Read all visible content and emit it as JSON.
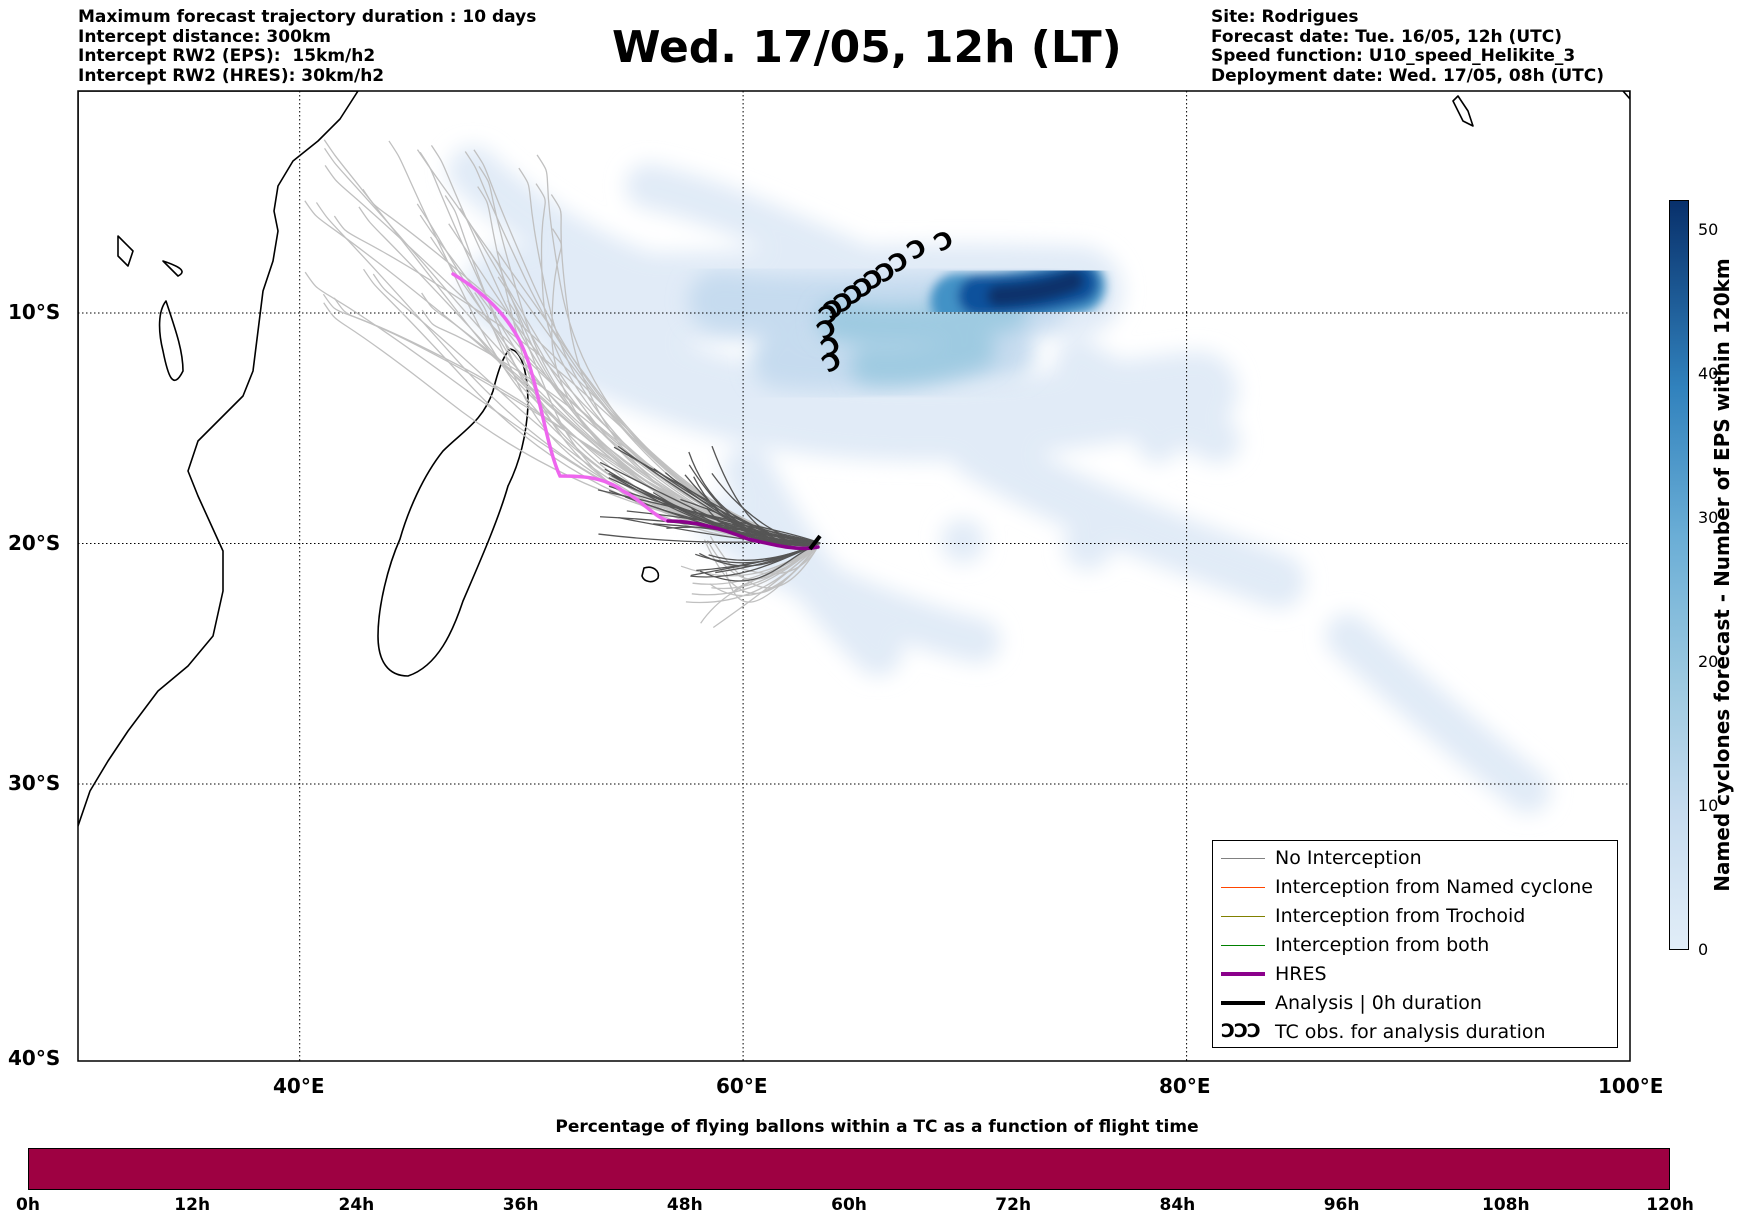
{
  "header": {
    "left": [
      "Maximum forecast trajectory duration : 10 days",
      "Intercept distance: 300km",
      "Intercept RW2 (EPS):  15km/h2",
      "Intercept RW2 (HRES): 30km/h2"
    ],
    "title": "Wed. 17/05, 12h (LT)",
    "right": [
      "Site: Rodrigues",
      "Forecast date: Tue. 16/05, 12h (UTC)",
      "Speed function: U10_speed_Helikite_3",
      "Deployment date: Wed. 17/05, 08h (UTC)"
    ]
  },
  "map": {
    "lon_range": [
      30,
      100
    ],
    "lat_range": [
      -40,
      0
    ],
    "gridlines": "dotted",
    "lat_labels": [
      "10°S",
      "20°S",
      "30°S",
      "40°S"
    ],
    "lon_labels": [
      "40°E",
      "60°E",
      "80°E",
      "100°E"
    ],
    "hres_color": "#8b008b",
    "hres_early_color": "#ee66ee",
    "tc_symbol": "Ɔ",
    "tc_obs_count": 13
  },
  "legend": {
    "placement": "lower-right",
    "items": [
      {
        "label": "No Interception",
        "color": "#808080",
        "width": 1
      },
      {
        "label": "Interception from Named cyclone",
        "color": "#ff4500",
        "width": 1
      },
      {
        "label": "Interception from Trochoid",
        "color": "#808000",
        "width": 1
      },
      {
        "label": "Interception from both",
        "color": "#008000",
        "width": 1
      },
      {
        "label": "HRES",
        "color": "#8b008b",
        "width": 4
      },
      {
        "label": "Analysis | 0h duration",
        "color": "#000000",
        "width": 4
      },
      {
        "label": "TC obs. for analysis duration",
        "symbol": "ƆƆƆ"
      }
    ]
  },
  "colorbar_right": {
    "label": "Named cyclones forecast - Number of EPS within 120km",
    "range": [
      0,
      52
    ],
    "ticks": [
      "0",
      "10",
      "20",
      "30",
      "40",
      "50"
    ],
    "colors": [
      "#e1edf8",
      "#08306b"
    ]
  },
  "colorbar_bottom": {
    "title": "Percentage of flying ballons within a TC as a function of flight time",
    "color": "#9e0142",
    "ticks": [
      "0h",
      "12h",
      "24h",
      "36h",
      "48h",
      "60h",
      "72h",
      "84h",
      "96h",
      "108h",
      "120h"
    ]
  }
}
